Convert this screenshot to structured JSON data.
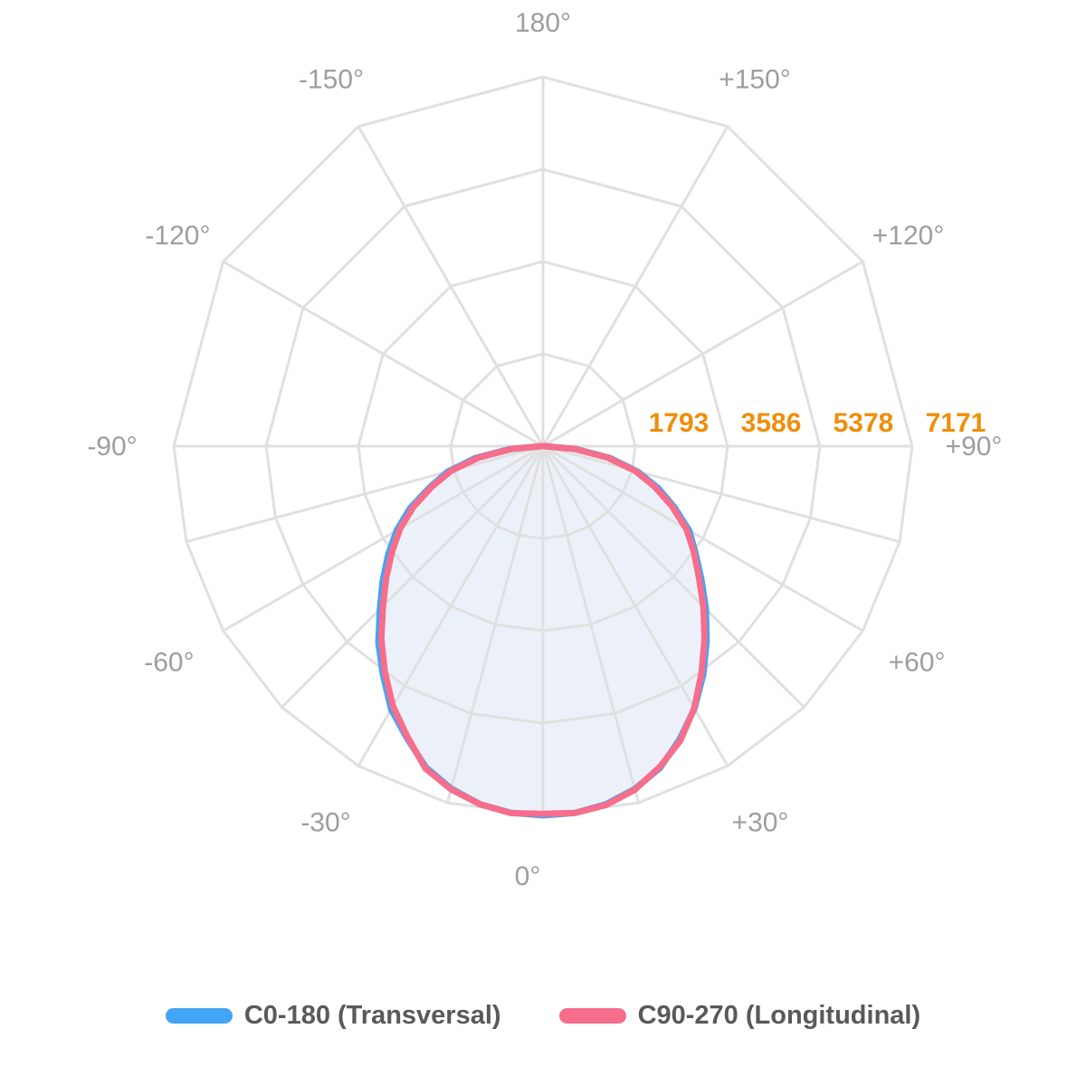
{
  "chart_data": {
    "type": "polar",
    "subtype": "photometric-intensity-distribution",
    "background_color": "#FFFFFF",
    "grid": {
      "color": "#E0E0E0",
      "stroke_width": 3,
      "ring_count": 4,
      "upper_spoke_step_deg": 30,
      "lower_spoke_step_deg": 15,
      "zero_direction": "down"
    },
    "radial_axis": {
      "ticks": [
        1793,
        3586,
        5378,
        7171
      ],
      "max": 7171,
      "tick_color": "#EF8E0A"
    },
    "angle_axis": {
      "label_color": "#9E9E9E",
      "labels": [
        {
          "angle": 180,
          "text": "180°"
        },
        {
          "angle": -150,
          "text": "-150°"
        },
        {
          "angle": 150,
          "text": "+150°"
        },
        {
          "angle": -120,
          "text": "-120°"
        },
        {
          "angle": 120,
          "text": "+120°"
        },
        {
          "angle": -90,
          "text": "-90°"
        },
        {
          "angle": 90,
          "text": "+90°"
        },
        {
          "angle": -60,
          "text": "-60°"
        },
        {
          "angle": 60,
          "text": "+60°"
        },
        {
          "angle": -30,
          "text": "-30°"
        },
        {
          "angle": 30,
          "text": "+30°"
        },
        {
          "angle": 0,
          "text": "0°"
        }
      ]
    },
    "fill_color": "#ECF1F9",
    "angles_deg": [
      -90,
      -85,
      -80,
      -75,
      -70,
      -65,
      -60,
      -55,
      -50,
      -45,
      -40,
      -35,
      -30,
      -25,
      -20,
      -15,
      -10,
      -5,
      0,
      5,
      10,
      15,
      20,
      25,
      30,
      35,
      40,
      45,
      50,
      55,
      60,
      65,
      70,
      75,
      80,
      85,
      90
    ],
    "series": [
      {
        "name": "C0-180 (Transversal)",
        "color": "#42A5F5",
        "stroke_width": 7,
        "values": [
          40,
          655,
          1335,
          1920,
          2345,
          2850,
          3285,
          3670,
          4065,
          4480,
          4975,
          5420,
          5900,
          6255,
          6640,
          6885,
          7060,
          7148,
          7171,
          7150,
          7060,
          6890,
          6650,
          6280,
          5885,
          5425,
          4945,
          4475,
          4015,
          3615,
          3280,
          2820,
          2380,
          1900,
          1320,
          640,
          35
        ]
      },
      {
        "name": "C90-270 (Longitudinal)",
        "color": "#F76D8C",
        "stroke_width": 7,
        "values": [
          25,
          600,
          1260,
          1845,
          2295,
          2770,
          3205,
          3580,
          3975,
          4395,
          4885,
          5355,
          5830,
          6230,
          6665,
          6900,
          7060,
          7155,
          7140,
          7150,
          7075,
          6905,
          6630,
          6310,
          5875,
          5370,
          4880,
          4405,
          3950,
          3575,
          3215,
          2765,
          2310,
          1855,
          1270,
          610,
          20
        ]
      }
    ],
    "legend_position": "bottom"
  },
  "legend": {
    "items": [
      {
        "label": "C0-180 (Transversal)",
        "color": "#42A5F5"
      },
      {
        "label": "C90-270 (Longitudinal)",
        "color": "#F76D8C"
      }
    ]
  }
}
